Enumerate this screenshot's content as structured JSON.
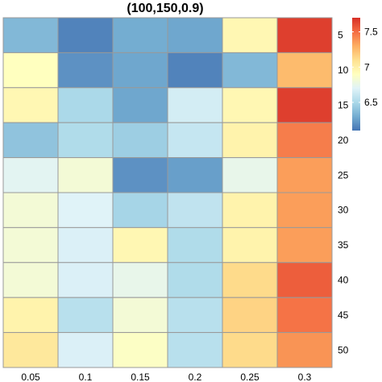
{
  "chart_data": {
    "type": "heatmap",
    "title": "(100,150,0.9)",
    "x_labels": [
      "0.05",
      "0.1",
      "0.15",
      "0.2",
      "0.25",
      "0.3"
    ],
    "y_labels": [
      "5",
      "10",
      "15",
      "20",
      "25",
      "30",
      "35",
      "40",
      "45",
      "50"
    ],
    "values": [
      [
        6.35,
        6.15,
        6.3,
        6.28,
        6.95,
        7.65
      ],
      [
        6.9,
        6.2,
        6.28,
        6.15,
        6.35,
        7.25
      ],
      [
        6.95,
        6.5,
        6.28,
        6.65,
        6.95,
        7.65
      ],
      [
        6.4,
        6.52,
        6.45,
        6.6,
        6.98,
        7.45
      ],
      [
        6.72,
        6.82,
        6.2,
        6.25,
        6.75,
        7.35
      ],
      [
        6.82,
        6.7,
        6.48,
        6.58,
        6.98,
        7.35
      ],
      [
        6.82,
        6.68,
        6.95,
        6.52,
        6.98,
        7.35
      ],
      [
        6.82,
        6.68,
        6.75,
        6.52,
        7.12,
        7.55
      ],
      [
        6.98,
        6.55,
        6.82,
        6.55,
        7.15,
        7.48
      ],
      [
        7.05,
        6.68,
        6.88,
        6.55,
        7.12,
        7.38
      ]
    ],
    "color_scale": {
      "min": 6.1,
      "max": 7.7,
      "ticks": [
        "6.5",
        "7",
        "7.5"
      ],
      "tick_values": [
        6.5,
        7.0,
        7.5
      ],
      "colors": [
        "#4575B4",
        "#74ADD1",
        "#ABD9E9",
        "#E0F3F8",
        "#FFFFBF",
        "#FEE090",
        "#FDAE61",
        "#F46D43",
        "#D73027"
      ]
    },
    "legend_position": "right",
    "cell_border_color": "#999999"
  }
}
